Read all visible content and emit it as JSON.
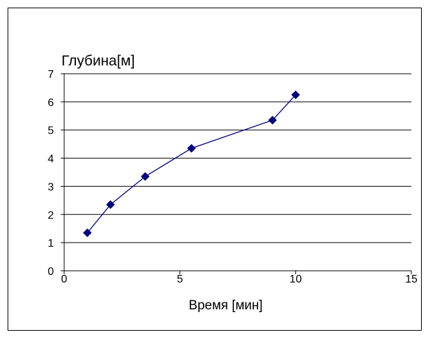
{
  "chart_data": {
    "type": "line",
    "title": "",
    "ylabel": "Глубина[м]",
    "xlabel": "Время [мин]",
    "xlim": [
      0,
      15
    ],
    "ylim": [
      0,
      7
    ],
    "x_ticks": [
      "0",
      "5",
      "10",
      "15"
    ],
    "y_ticks": [
      "0",
      "1",
      "2",
      "3",
      "4",
      "5",
      "6",
      "7"
    ],
    "grid": "horizontal",
    "legend": "none",
    "series": [
      {
        "x": [
          1,
          2,
          3.5,
          5.5,
          9,
          10
        ],
        "y": [
          1.35,
          2.35,
          3.35,
          4.35,
          5.35,
          6.25
        ]
      }
    ],
    "colors": {
      "series": "#000080",
      "marker": "#000080",
      "grid": "#000000",
      "frame": "#000000"
    }
  }
}
